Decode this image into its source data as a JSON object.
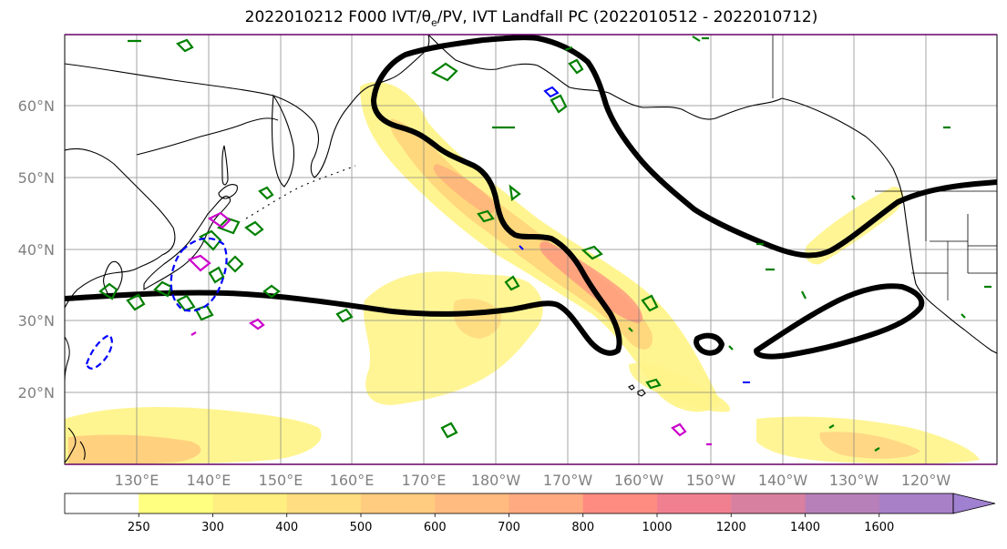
{
  "title": {
    "prefix": "2022010212 F000 IVT/",
    "theta": "θ",
    "sub": "e",
    "suffix": "/PV, IVT Landfall PC (2022010512 - 2022010712)"
  },
  "map": {
    "projection": "PlateCarree",
    "lon_range": [
      120,
      250
    ],
    "lat_range": [
      10,
      70
    ],
    "lat_ticks": [
      {
        "lat": 20,
        "label": "20°N"
      },
      {
        "lat": 30,
        "label": "30°N"
      },
      {
        "lat": 40,
        "label": "40°N"
      },
      {
        "lat": 50,
        "label": "50°N"
      },
      {
        "lat": 60,
        "label": "60°N"
      }
    ],
    "lon_ticks": [
      {
        "lon": 130,
        "label": "130°E"
      },
      {
        "lon": 140,
        "label": "140°E"
      },
      {
        "lon": 150,
        "label": "150°E"
      },
      {
        "lon": 160,
        "label": "160°E"
      },
      {
        "lon": 170,
        "label": "170°E"
      },
      {
        "lon": 180,
        "label": "180°W"
      },
      {
        "lon": 190,
        "label": "170°W"
      },
      {
        "lon": 200,
        "label": "160°W"
      },
      {
        "lon": 210,
        "label": "150°W"
      },
      {
        "lon": 220,
        "label": "140°W"
      },
      {
        "lon": 230,
        "label": "130°W"
      },
      {
        "lon": 240,
        "label": "120°W"
      }
    ],
    "grid": true
  },
  "colorbar": {
    "levels": [
      "250",
      "300",
      "400",
      "500",
      "600",
      "700",
      "800",
      "1000",
      "1200",
      "1400",
      "1600"
    ],
    "colors": [
      "#ffffff",
      "#ffff80",
      "#ffee80",
      "#ffdd80",
      "#ffcc80",
      "#ffbb80",
      "#ffaa80",
      "#ff8c80",
      "#f08090",
      "#d880a0",
      "#b880b8",
      "#a880c8",
      "#a080d0"
    ],
    "extend": "max"
  },
  "colors": {
    "ivt_contour": "#000000",
    "theta_e": "#008000",
    "pv_positive": "#cc00cc",
    "pv_negative": "#0000ff",
    "coastline": "#000000"
  }
}
